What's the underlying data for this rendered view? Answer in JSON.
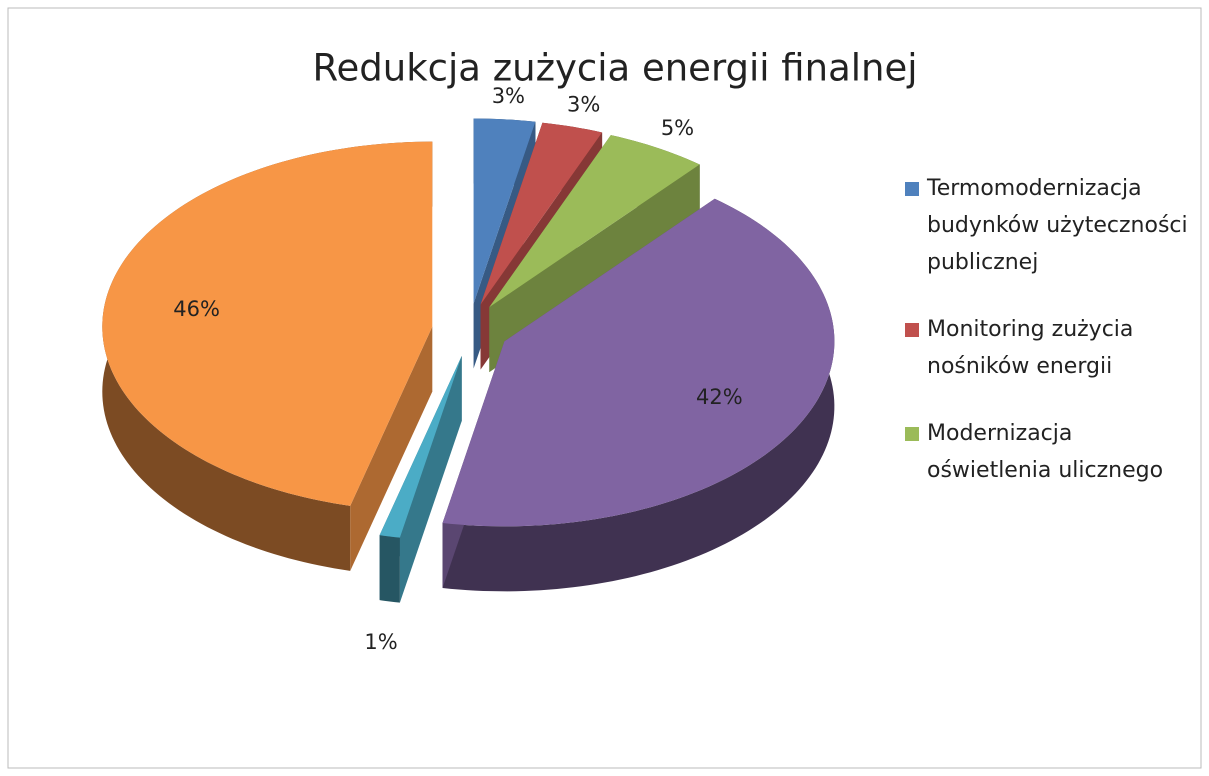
{
  "chart_data": {
    "type": "pie",
    "title": "Redukcja zużycia energii finalnej",
    "categories": [
      "Termomodernizacja budynków użyteczności publicznej",
      "Monitoring zużycia nośników energii",
      "Modernizacja oświetlenia ulicznego",
      null,
      null,
      null
    ],
    "values": [
      3,
      3,
      5,
      42,
      1,
      46
    ],
    "value_labels": [
      "3%",
      "3%",
      "5%",
      "42%",
      "1%",
      "46%"
    ],
    "colors": [
      "#4f81bd",
      "#c0504d",
      "#9bbb59",
      "#8064a2",
      "#4bacc6",
      "#f79646"
    ],
    "legend": "right"
  }
}
